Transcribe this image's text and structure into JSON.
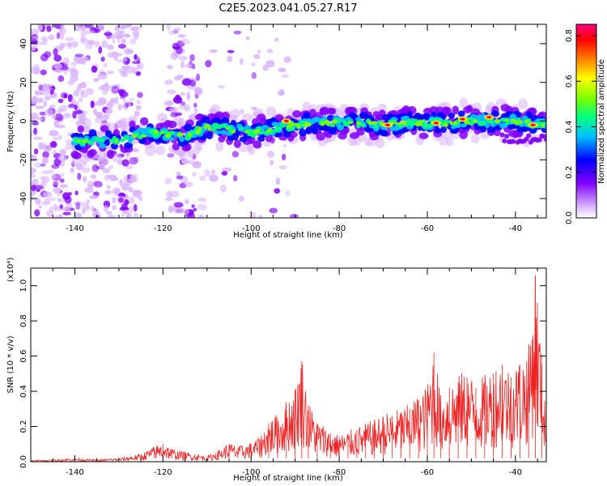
{
  "figure_title": "C2E5.2023.041.05.27.R17",
  "chart_data": [
    {
      "type": "heatmap",
      "title": "",
      "xlabel": "Height of straight line (km)",
      "ylabel": "Frequency (Hz)",
      "xlim": [
        -150,
        -33
      ],
      "ylim": [
        -50,
        50
      ],
      "x_ticks": [
        -140,
        -120,
        -100,
        -80,
        -60,
        -40
      ],
      "y_ticks": [
        -40,
        -20,
        0,
        20,
        40
      ],
      "colorbar": {
        "label": "Normalized spectral amplitude",
        "ticks": [
          0.0,
          0.2,
          0.4,
          0.6,
          0.8
        ],
        "range": [
          0,
          0.85
        ],
        "colors": [
          "#ffffff",
          "#d9b3ff",
          "#8000ff",
          "#0000ff",
          "#00c0ff",
          "#00ff80",
          "#80ff00",
          "#ffff00",
          "#ff8000",
          "#ff0000",
          "#ff0080"
        ]
      },
      "ridge": {
        "x": [
          -150,
          -140,
          -130,
          -125,
          -120,
          -115,
          -110,
          -105,
          -100,
          -95,
          -90,
          -85,
          -80,
          -75,
          -70,
          -65,
          -60,
          -55,
          -50,
          -45,
          -40,
          -35,
          -33
        ],
        "y": [
          -12,
          -11,
          -10,
          -7,
          -6,
          -8,
          -3,
          -4,
          -6,
          -4,
          -2,
          -1,
          -1,
          -1,
          -2,
          -1,
          -1,
          -1,
          0,
          0,
          0,
          -2,
          -2
        ]
      }
    },
    {
      "type": "line",
      "title": "",
      "xlabel": "Height of straight line (km)",
      "ylabel": "SNR (10 * v/v)",
      "y_multiplier": "(x10⁴)",
      "xlim": [
        -150,
        -33
      ],
      "ylim": [
        0,
        1.1
      ],
      "x_ticks": [
        -140,
        -120,
        -100,
        -80,
        -60,
        -40
      ],
      "y_ticks": [
        0.0,
        0.2,
        0.4,
        0.6,
        0.8,
        1.0
      ],
      "series": [
        {
          "color": "#ee2222",
          "x": [
            -150,
            -145,
            -140,
            -135,
            -130,
            -125,
            -122,
            -120,
            -118,
            -115,
            -112,
            -110,
            -108,
            -105,
            -103,
            -100,
            -98,
            -96,
            -94,
            -92,
            -90,
            -88.5,
            -87,
            -85,
            -82,
            -80,
            -78,
            -76,
            -74,
            -72,
            -70,
            -68,
            -66,
            -64,
            -62,
            -60,
            -58.5,
            -57,
            -55,
            -53,
            -51,
            -49,
            -47,
            -45,
            -43,
            -41,
            -39,
            -37,
            -35.5,
            -34,
            -33
          ],
          "y": [
            0.01,
            0.01,
            0.02,
            0.01,
            0.02,
            0.04,
            0.08,
            0.1,
            0.07,
            0.05,
            0.04,
            0.03,
            0.05,
            0.1,
            0.08,
            0.1,
            0.13,
            0.22,
            0.25,
            0.32,
            0.4,
            0.57,
            0.32,
            0.22,
            0.16,
            0.14,
            0.16,
            0.18,
            0.2,
            0.22,
            0.25,
            0.26,
            0.28,
            0.3,
            0.35,
            0.4,
            0.62,
            0.35,
            0.42,
            0.45,
            0.48,
            0.42,
            0.45,
            0.5,
            0.55,
            0.48,
            0.55,
            0.6,
            1.06,
            0.55,
            0.35
          ]
        }
      ]
    }
  ]
}
